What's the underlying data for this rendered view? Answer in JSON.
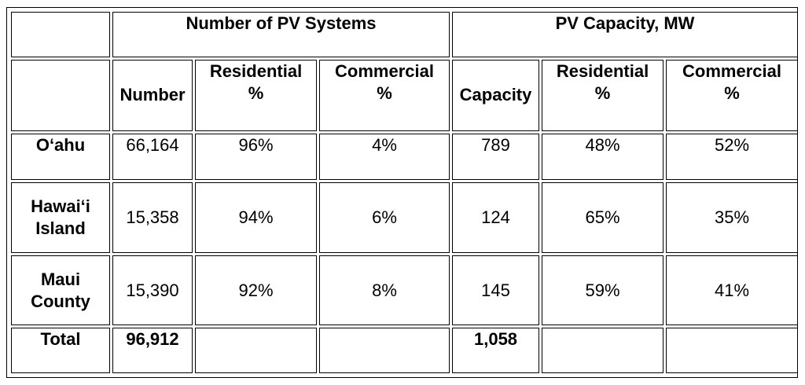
{
  "groups": {
    "systems": "Number of PV Systems",
    "capacity": "PV Capacity, MW"
  },
  "columns": {
    "number": "Number",
    "sys_res_l1": "Residential",
    "sys_res_l2": "%",
    "sys_com_l1": "Commercial",
    "sys_com_l2": "%",
    "capacity": "Capacity",
    "cap_res_l1": "Residential",
    "cap_res_l2": "%",
    "cap_com_l1": "Commercial",
    "cap_com_l2": "%"
  },
  "rows": [
    {
      "label_l1": "O‘ahu",
      "label_l2": "",
      "number": "66,164",
      "sys_res": "96%",
      "sys_com": "4%",
      "capacity": "789",
      "cap_res": "48%",
      "cap_com": "52%"
    },
    {
      "label_l1": "Hawai‘i",
      "label_l2": "Island",
      "number": "15,358",
      "sys_res": "94%",
      "sys_com": "6%",
      "capacity": "124",
      "cap_res": "65%",
      "cap_com": "35%"
    },
    {
      "label_l1": "Maui",
      "label_l2": "County",
      "number": "15,390",
      "sys_res": "92%",
      "sys_com": "8%",
      "capacity": "145",
      "cap_res": "59%",
      "cap_com": "41%"
    }
  ],
  "total": {
    "label": "Total",
    "number": "96,912",
    "capacity": "1,058"
  }
}
